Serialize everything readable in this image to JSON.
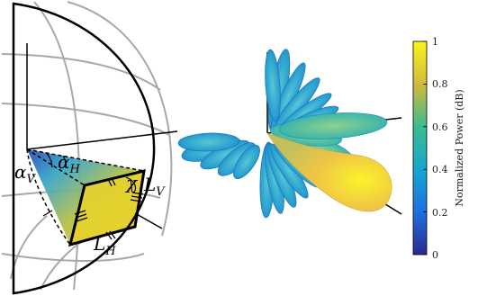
{
  "sphere_diagram": {
    "labels": [
      {
        "id": "alpha-v",
        "symbol": "α",
        "sub": "V"
      },
      {
        "id": "alpha-h",
        "symbol": "α",
        "sub": "H"
      },
      {
        "id": "chi",
        "symbol": "χ",
        "sub": ""
      },
      {
        "id": "l-v",
        "symbol": "L",
        "sub": "V"
      },
      {
        "id": "l-h",
        "symbol": "L",
        "sub": "H"
      }
    ]
  },
  "colorbar": {
    "title": "Normalized Power (dB)",
    "ticks": [
      "0",
      "0.2",
      "0.4",
      "0.6",
      "0.8",
      "1"
    ],
    "colors": {
      "low": "#2c2a8e",
      "mid_low": "#1e8fd6",
      "mid": "#2ab7a5",
      "mid_high": "#c6bd3a",
      "high": "#f8f31c"
    }
  }
}
